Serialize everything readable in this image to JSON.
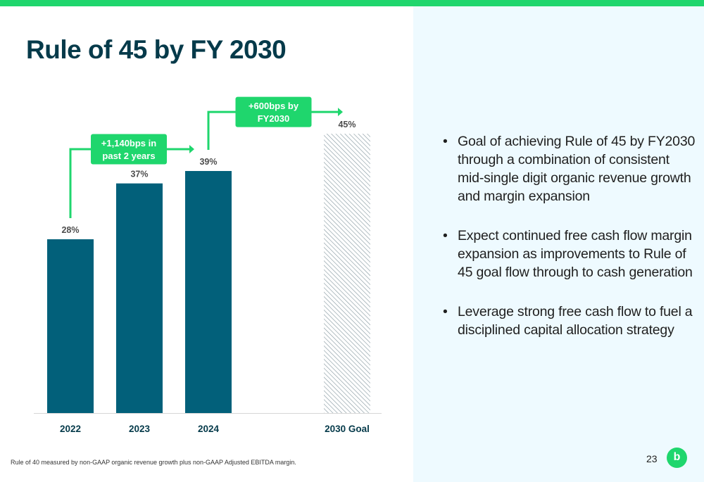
{
  "slide": {
    "title": "Rule of 45 by FY 2030",
    "page_number": "23",
    "footnote": "Rule of 40 measured by non-GAAP organic revenue growth plus non-GAAP Adjusted EBITDA margin.",
    "logo_text": "b",
    "bullets": [
      "Goal of achieving Rule of 45 by FY2030 through a combination of consistent mid-single digit organic revenue growth and margin expansion",
      "Expect continued free cash flow margin expansion as improvements to Rule of 45 goal flow through to cash generation",
      "Leverage strong free cash flow to fuel a disciplined capital allocation strategy"
    ]
  },
  "colors": {
    "bar": "#02607a",
    "goal_hatch": "#8a9ba3",
    "accent_green": "#1fd66d",
    "title": "#053a4a",
    "axis_line": "#d6d6d6",
    "label": "#4d4d4d"
  },
  "chart_data": {
    "type": "bar",
    "categories": [
      "2022",
      "2023",
      "2024",
      "2030 Goal"
    ],
    "values": [
      28,
      37,
      39,
      45
    ],
    "value_labels": [
      "28%",
      "37%",
      "39%",
      "45%"
    ],
    "goal_index": 3,
    "ylim": [
      0,
      50
    ],
    "grid": false,
    "annotations": [
      {
        "text_lines": [
          "+1,140bps in",
          "past 2 years"
        ],
        "from_index": 0,
        "to_index": 2
      },
      {
        "text_lines": [
          "+600bps by",
          "FY2030"
        ],
        "from_index": 2,
        "to_index": 3
      }
    ]
  }
}
